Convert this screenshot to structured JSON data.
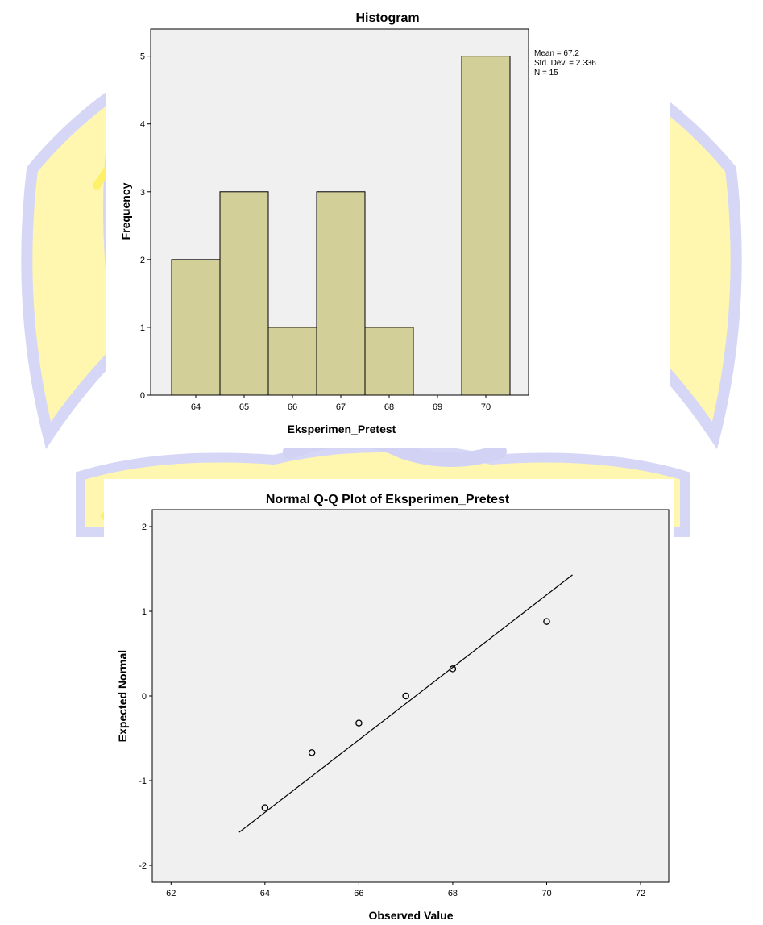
{
  "colors": {
    "background": "#ffffff",
    "plot_background": "#f0f0f0",
    "bar_fill": "#d3cf99",
    "bar_stroke": "#000000",
    "watermark_yellow": "#fff06a",
    "watermark_blue": "#d2d2f4",
    "line": "#000000"
  },
  "chart_data": [
    {
      "type": "bar",
      "title": "Histogram",
      "xlabel": "Eksperimen_Pretest",
      "ylabel": "Frequency",
      "categories": [
        "64",
        "65",
        "66",
        "67",
        "68",
        "69",
        "70"
      ],
      "values": [
        2,
        3,
        1,
        3,
        1,
        0,
        5
      ],
      "ylim": [
        0,
        5.4
      ],
      "yticks": [
        "0",
        "1",
        "2",
        "3",
        "4",
        "5"
      ],
      "grid": false,
      "legend": "none",
      "stats": [
        "Mean = 67.2",
        "Std. Dev. = 2.336",
        "N = 15"
      ]
    },
    {
      "type": "scatter",
      "title": "Normal Q-Q Plot of Eksperimen_Pretest",
      "xlabel": "Observed Value",
      "ylabel": "Expected Normal",
      "xlim": [
        61.6,
        72.6
      ],
      "ylim": [
        -2.2,
        2.2
      ],
      "xticks": [
        "62",
        "64",
        "66",
        "68",
        "70",
        "72"
      ],
      "yticks": [
        "-2",
        "-1",
        "0",
        "1",
        "2"
      ],
      "grid": false,
      "legend": "none",
      "points": [
        {
          "x": 64,
          "y": -1.32
        },
        {
          "x": 65,
          "y": -0.67
        },
        {
          "x": 66,
          "y": -0.32
        },
        {
          "x": 67,
          "y": 0.0
        },
        {
          "x": 68,
          "y": 0.32
        },
        {
          "x": 70,
          "y": 0.88
        }
      ],
      "reference_line": {
        "x": [
          63.45,
          70.55
        ],
        "y": [
          -1.61,
          1.43
        ]
      }
    }
  ]
}
